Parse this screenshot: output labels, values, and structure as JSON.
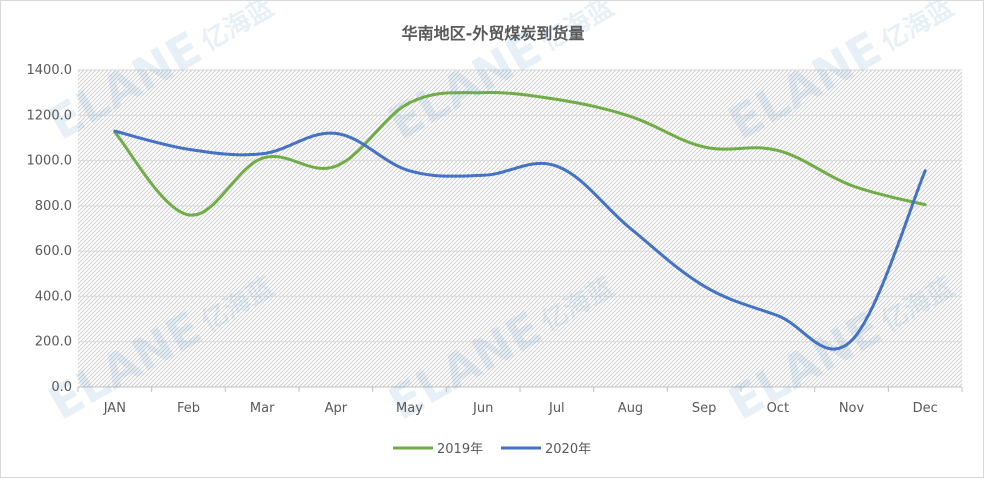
{
  "watermark": {
    "latin": "ELANE",
    "cn": "亿海蓝"
  },
  "chart_data": {
    "type": "line",
    "title": "华南地区-外贸煤炭到货量",
    "xlabel": "",
    "ylabel": "",
    "categories": [
      "JAN",
      "Feb",
      "Mar",
      "Apr",
      "May",
      "Jun",
      "Jul",
      "Aug",
      "Sep",
      "Oct",
      "Nov",
      "Dec"
    ],
    "y_ticks": [
      "0.0",
      "200.0",
      "400.0",
      "600.0",
      "800.0",
      "1000.0",
      "1200.0",
      "1400.0"
    ],
    "ylim": [
      0,
      1400
    ],
    "grid": true,
    "smooth": true,
    "legend_position": "bottom",
    "series": [
      {
        "name": "2019年",
        "color": "#70ad47",
        "values": [
          1125,
          760,
          1010,
          975,
          1255,
          1300,
          1270,
          1195,
          1060,
          1045,
          890,
          805
        ]
      },
      {
        "name": "2020年",
        "color": "#4472c4",
        "values": [
          1130,
          1050,
          1030,
          1120,
          955,
          935,
          975,
          700,
          445,
          315,
          205,
          955
        ]
      }
    ]
  }
}
